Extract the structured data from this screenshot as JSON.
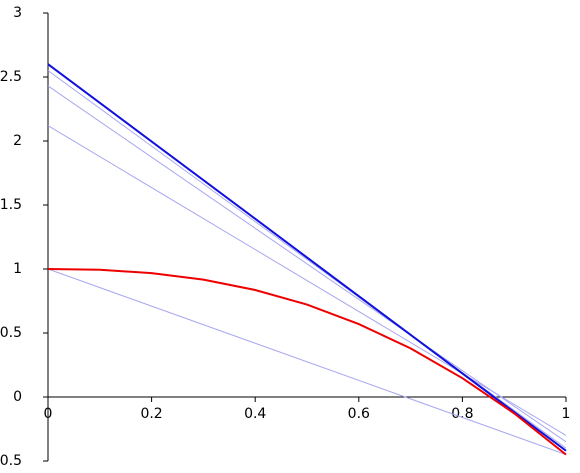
{
  "chart_data": {
    "type": "line",
    "xlim": [
      0,
      1
    ],
    "ylim": [
      -0.5,
      3
    ],
    "xticks": [
      0,
      0.2,
      0.4,
      0.6,
      0.8,
      1
    ],
    "yticks": [
      -0.5,
      0,
      0.5,
      1,
      1.5,
      2,
      2.5,
      3
    ],
    "series": [
      {
        "color": "#a8a8f0",
        "line_width": 1,
        "x": [
          0,
          1
        ],
        "values": [
          1,
          -0.45
        ]
      },
      {
        "color": "#a8a8f0",
        "line_width": 1,
        "x": [
          0,
          1
        ],
        "values": [
          2.12,
          -0.3
        ]
      },
      {
        "color": "#a8a8f0",
        "line_width": 1,
        "x": [
          0,
          1
        ],
        "values": [
          2.43,
          -0.35
        ]
      },
      {
        "color": "#a8a8f0",
        "line_width": 1,
        "x": [
          0,
          1
        ],
        "values": [
          2.55,
          -0.4
        ]
      },
      {
        "color": "#1010dd",
        "line_width": 2,
        "x": [
          0,
          1
        ],
        "values": [
          2.6,
          -0.42
        ]
      },
      {
        "color": "#ee0000",
        "line_width": 2,
        "x": [
          0,
          0.1,
          0.2,
          0.3,
          0.4,
          0.5,
          0.6,
          0.7,
          0.8,
          0.9,
          1
        ],
        "values": [
          1,
          0.994,
          0.968,
          0.917,
          0.836,
          0.722,
          0.57,
          0.38,
          0.147,
          -0.128,
          -0.45
        ]
      }
    ]
  }
}
